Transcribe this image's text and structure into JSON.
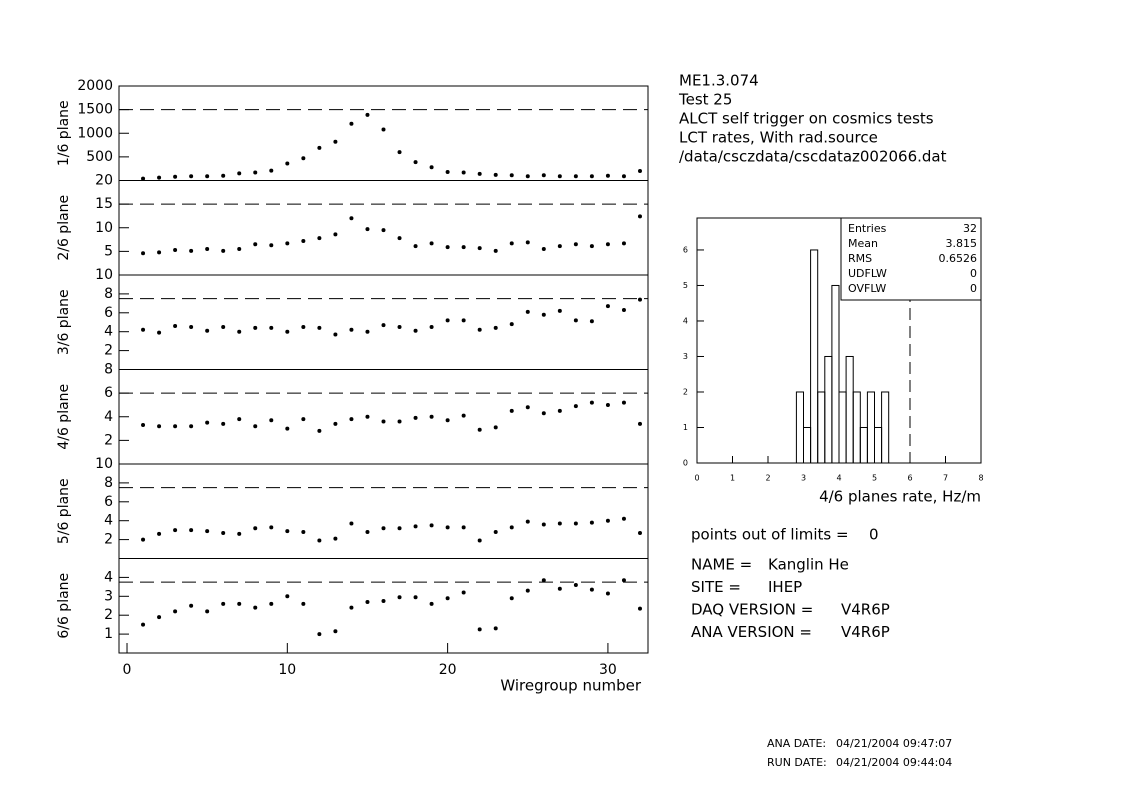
{
  "chart_data": [
    {
      "type": "scatter",
      "ylabel": "1/6 plane",
      "color": "#000000",
      "xlim": [
        -0.5,
        32.5
      ],
      "ylim": [
        0,
        2000
      ],
      "yticks": [
        500,
        1000,
        1500,
        2000
      ],
      "limit": 1500,
      "x": [
        1,
        2,
        3,
        4,
        5,
        6,
        7,
        8,
        9,
        10,
        11,
        12,
        13,
        14,
        15,
        16,
        17,
        18,
        19,
        20,
        21,
        22,
        23,
        24,
        25,
        26,
        27,
        28,
        29,
        30,
        31,
        32
      ],
      "values": [
        40,
        60,
        80,
        90,
        90,
        100,
        150,
        170,
        210,
        360,
        470,
        690,
        820,
        1200,
        1390,
        1080,
        600,
        390,
        280,
        180,
        170,
        140,
        120,
        110,
        90,
        110,
        90,
        90,
        90,
        100,
        90,
        200
      ]
    },
    {
      "type": "scatter",
      "ylabel": "2/6 plane",
      "color": "#000000",
      "xlim": [
        -0.5,
        32.5
      ],
      "ylim": [
        0,
        20
      ],
      "yticks": [
        5,
        10,
        15,
        20
      ],
      "limit": 15,
      "x": [
        1,
        2,
        3,
        4,
        5,
        6,
        7,
        8,
        9,
        10,
        11,
        12,
        13,
        14,
        15,
        16,
        17,
        18,
        19,
        20,
        21,
        22,
        23,
        24,
        25,
        26,
        27,
        28,
        29,
        30,
        31,
        32
      ],
      "values": [
        4.6,
        4.8,
        5.3,
        5.1,
        5.5,
        5.1,
        5.5,
        6.5,
        6.3,
        6.7,
        7.2,
        7.8,
        8.6,
        12,
        9.7,
        9.5,
        7.8,
        6.1,
        6.7,
        5.9,
        5.9,
        5.7,
        5.1,
        6.7,
        6.9,
        5.5,
        6.1,
        6.5,
        6.1,
        6.5,
        6.7,
        12.4
      ]
    },
    {
      "type": "scatter",
      "ylabel": "3/6 plane",
      "color": "#000000",
      "xlim": [
        -0.5,
        32.5
      ],
      "ylim": [
        0,
        10
      ],
      "yticks": [
        2,
        4,
        6,
        8,
        10
      ],
      "limit": 7.5,
      "x": [
        1,
        2,
        3,
        4,
        5,
        6,
        7,
        8,
        9,
        10,
        11,
        12,
        13,
        14,
        15,
        16,
        17,
        18,
        19,
        20,
        21,
        22,
        23,
        24,
        25,
        26,
        27,
        28,
        29,
        30,
        31,
        32
      ],
      "values": [
        4.2,
        3.9,
        4.6,
        4.5,
        4.1,
        4.5,
        4.0,
        4.4,
        4.4,
        4.0,
        4.5,
        4.4,
        3.7,
        4.2,
        4.0,
        4.7,
        4.5,
        4.1,
        4.5,
        5.2,
        5.2,
        4.2,
        4.4,
        4.8,
        6.1,
        5.8,
        6.2,
        5.2,
        5.1,
        6.7,
        6.3,
        7.4
      ]
    },
    {
      "type": "scatter",
      "ylabel": "4/6 plane",
      "color": "#000000",
      "xlim": [
        -0.5,
        32.5
      ],
      "ylim": [
        0,
        8
      ],
      "yticks": [
        2,
        4,
        6,
        8
      ],
      "limit": 6,
      "x": [
        1,
        2,
        3,
        4,
        5,
        6,
        7,
        8,
        9,
        10,
        11,
        12,
        13,
        14,
        15,
        16,
        17,
        18,
        19,
        20,
        21,
        22,
        23,
        24,
        25,
        26,
        27,
        28,
        29,
        30,
        31,
        32
      ],
      "values": [
        3.3,
        3.2,
        3.2,
        3.2,
        3.5,
        3.4,
        3.8,
        3.2,
        3.7,
        3.0,
        3.8,
        2.8,
        3.4,
        3.8,
        4.0,
        3.6,
        3.6,
        3.9,
        4.0,
        3.7,
        4.1,
        2.9,
        3.1,
        4.5,
        4.8,
        4.3,
        4.5,
        4.9,
        5.2,
        5.0,
        5.2,
        3.4
      ]
    },
    {
      "type": "scatter",
      "ylabel": "5/6 plane",
      "color": "#000000",
      "xlim": [
        -0.5,
        32.5
      ],
      "ylim": [
        0,
        10
      ],
      "yticks": [
        2,
        4,
        6,
        8,
        10
      ],
      "limit": 7.5,
      "x": [
        1,
        2,
        3,
        4,
        5,
        6,
        7,
        8,
        9,
        10,
        11,
        12,
        13,
        14,
        15,
        16,
        17,
        18,
        19,
        20,
        21,
        22,
        23,
        24,
        25,
        26,
        27,
        28,
        29,
        30,
        31,
        32
      ],
      "values": [
        2.0,
        2.6,
        3.0,
        3.0,
        2.9,
        2.7,
        2.6,
        3.2,
        3.3,
        2.9,
        2.8,
        1.9,
        2.1,
        3.7,
        2.8,
        3.2,
        3.2,
        3.4,
        3.5,
        3.3,
        3.3,
        1.9,
        2.8,
        3.3,
        3.9,
        3.6,
        3.7,
        3.7,
        3.8,
        4.0,
        4.2,
        2.7
      ]
    },
    {
      "type": "scatter",
      "ylabel": "6/6 plane",
      "xlabel": "Wiregroup number",
      "color": "#000000",
      "xlim": [
        -0.5,
        32.5
      ],
      "xticks": [
        0,
        10,
        20,
        30
      ],
      "ylim": [
        0,
        5
      ],
      "yticks": [
        1,
        2,
        3,
        4
      ],
      "limit": 3.75,
      "x": [
        1,
        2,
        3,
        4,
        5,
        6,
        7,
        8,
        9,
        10,
        11,
        12,
        13,
        14,
        15,
        16,
        17,
        18,
        19,
        20,
        21,
        22,
        23,
        24,
        25,
        26,
        27,
        28,
        29,
        30,
        31,
        32
      ],
      "values": [
        1.5,
        1.9,
        2.2,
        2.5,
        2.2,
        2.6,
        2.6,
        2.4,
        2.6,
        3.0,
        2.6,
        1.0,
        1.15,
        2.4,
        2.7,
        2.75,
        2.95,
        2.95,
        2.6,
        2.9,
        3.2,
        1.25,
        1.3,
        2.9,
        3.3,
        3.85,
        3.4,
        3.6,
        3.35,
        3.15,
        3.85,
        2.35
      ]
    },
    {
      "type": "histogram",
      "xlabel": "4/6 planes rate, Hz/m",
      "color": "#000000",
      "xlim": [
        0,
        8
      ],
      "xticks": [
        0,
        1,
        2,
        3,
        4,
        5,
        6,
        7,
        8
      ],
      "ylim": [
        0,
        6.9
      ],
      "yticks": [
        0,
        1,
        2,
        3,
        4,
        5,
        6
      ],
      "limit": 6,
      "bins": [
        2.8,
        3.0,
        3.2,
        3.4,
        3.6,
        3.8,
        4.0,
        4.2,
        4.4,
        4.6,
        4.8,
        5.0,
        5.2,
        5.4
      ],
      "counts": [
        2,
        1,
        6,
        2,
        3,
        5,
        2,
        3,
        2,
        1,
        2,
        1,
        2
      ],
      "stats": [
        {
          "label": "Entries",
          "value": 32
        },
        {
          "label": "Mean",
          "value": 3.815
        },
        {
          "label": "RMS",
          "value": 0.6526
        },
        {
          "label": "UDFLW",
          "value": 0
        },
        {
          "label": "OVFLW",
          "value": 0
        }
      ]
    }
  ],
  "header": [
    "ME1.3.074",
    "Test 25",
    "ALCT self trigger on cosmics tests",
    "LCT rates, With rad.source",
    "/data/csczdata/cscdataz002066.dat"
  ],
  "limits": {
    "label": "points out of limits =",
    "value": 0
  },
  "info": [
    {
      "label": "NAME =",
      "value": "Kanglin He"
    },
    {
      "label": "SITE =",
      "value": "IHEP"
    },
    {
      "label": "DAQ VERSION =",
      "value": "V4R6P"
    },
    {
      "label": "ANA VERSION =",
      "value": "V4R6P"
    }
  ],
  "dates": [
    {
      "label": "ANA DATE:",
      "value": "04/21/2004 09:47:07"
    },
    {
      "label": "RUN DATE:",
      "value": "04/21/2004 09:44:04"
    }
  ]
}
